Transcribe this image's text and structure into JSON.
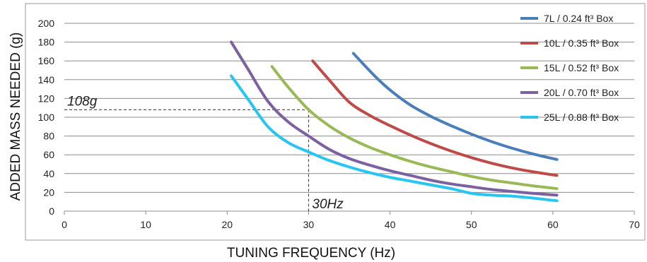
{
  "chart_data": {
    "type": "line",
    "xlabel": "TUNING FREQUENCY (Hz)",
    "ylabel": "ADDED MASS NEEDED (g)",
    "xlim": [
      0,
      70
    ],
    "ylim": [
      0,
      200
    ],
    "xticks": [
      "0",
      "10",
      "20",
      "30",
      "40",
      "50",
      "60",
      "70"
    ],
    "yticks": [
      "0",
      "20",
      "40",
      "60",
      "80",
      "100",
      "120",
      "140",
      "160",
      "180",
      "200"
    ],
    "grid": "horizontal",
    "legend_position": "right",
    "series": [
      {
        "name": "7L / 0.24 ft³ Box",
        "color": "#4a7ebb",
        "x": [
          35.5,
          38,
          40,
          42.5,
          45,
          47.5,
          50,
          52.5,
          55,
          57.5,
          60.5
        ],
        "y": [
          168,
          145,
          129,
          113,
          101,
          91,
          82,
          74,
          67,
          61,
          55
        ]
      },
      {
        "name": "10L / 0.35 ft³ Box",
        "color": "#be4b48",
        "x": [
          30.5,
          32.5,
          35,
          37.5,
          40,
          42.5,
          45,
          47.5,
          50,
          52.5,
          55,
          57.5,
          60.5
        ],
        "y": [
          160,
          140,
          116,
          102,
          91,
          81,
          72,
          64,
          57,
          51,
          46,
          42,
          38
        ]
      },
      {
        "name": "15L / 0.52 ft³ Box",
        "color": "#98b954",
        "x": [
          25.5,
          27.5,
          30,
          32.5,
          35,
          37.5,
          40,
          42.5,
          45,
          47.5,
          50,
          52.5,
          55,
          57.5,
          60.5
        ],
        "y": [
          154,
          132,
          108,
          91,
          78,
          68,
          60,
          53,
          47,
          42,
          37,
          33,
          30,
          27,
          24
        ]
      },
      {
        "name": "20L / 0.70 ft³ Box",
        "color": "#7d60a0",
        "x": [
          20.5,
          22.5,
          25,
          27.5,
          30,
          32.5,
          35,
          37.5,
          40,
          42.5,
          45,
          47.5,
          50,
          52.5,
          55,
          57.5,
          60.5
        ],
        "y": [
          180,
          152,
          117,
          95,
          80,
          66,
          56,
          49,
          43,
          38,
          33,
          29,
          26,
          23,
          21,
          19,
          17
        ]
      },
      {
        "name": "25L / 0.88 ft³ Box",
        "color": "#27c6f2",
        "x": [
          20.5,
          22.5,
          25,
          27.5,
          30,
          32.5,
          35,
          37.5,
          40,
          42.5,
          45,
          47.5,
          50,
          52.5,
          55,
          57.5,
          60.5
        ],
        "y": [
          144,
          120,
          90,
          73,
          63,
          54,
          47,
          41,
          36,
          32,
          28,
          24,
          19,
          17,
          16,
          14,
          11
        ]
      }
    ],
    "annotations": [
      {
        "text": "108g",
        "x": 30,
        "y": 108
      },
      {
        "text": "30Hz",
        "x": 30,
        "y": 108
      }
    ]
  }
}
